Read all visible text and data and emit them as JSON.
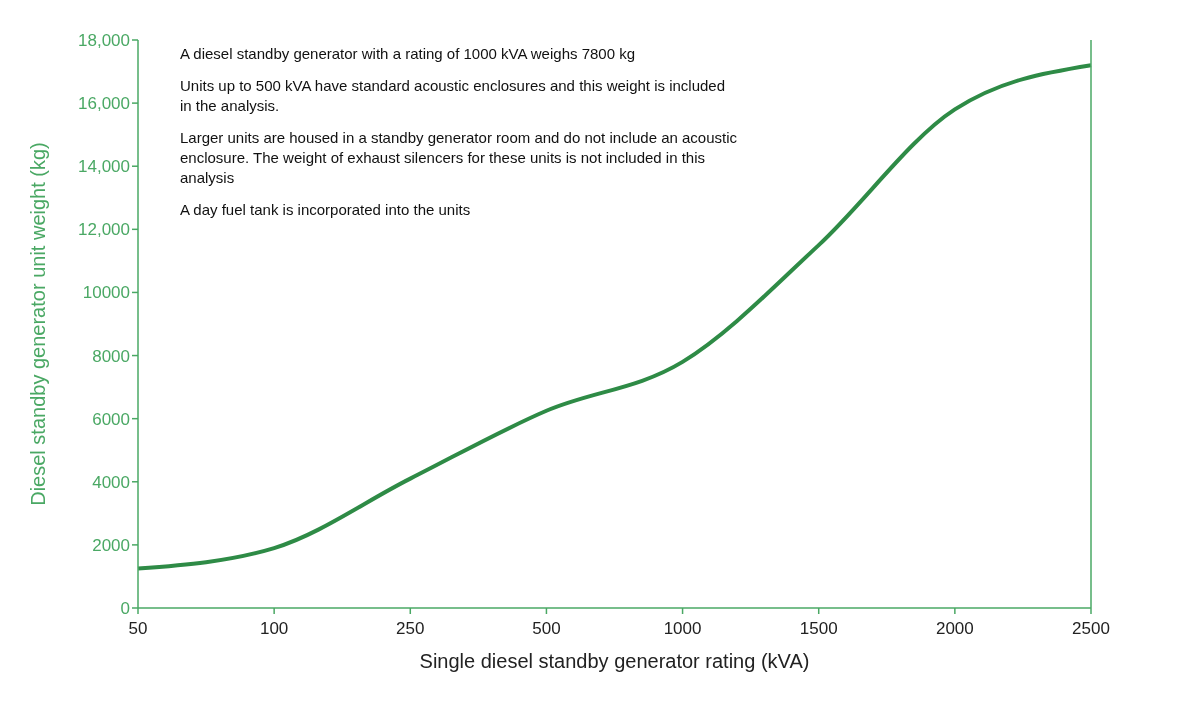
{
  "chart_data": {
    "type": "line",
    "xlabel": "Single diesel standby generator rating (kVA)",
    "ylabel": "Diesel standby generator unit weight (kg)",
    "categories": [
      "50",
      "100",
      "250",
      "500",
      "1000",
      "1500",
      "2000",
      "2500"
    ],
    "series": [
      {
        "color": "#2e8b46",
        "values": [
          1250,
          1900,
          4100,
          6250,
          7800,
          11500,
          15800,
          17200
        ]
      }
    ],
    "ylim": [
      0,
      18000
    ],
    "yticks": [
      0,
      2000,
      4000,
      6000,
      8000,
      10000,
      {
        "value": 12000,
        "label": "12,000"
      },
      {
        "value": 14000,
        "label": "14,000"
      },
      {
        "value": 16000,
        "label": "16,000"
      },
      {
        "value": 18000,
        "label": "18,000"
      }
    ],
    "grid": false,
    "legend": false,
    "marker": "none",
    "line_style": "solid",
    "annotations": [
      "A diesel standby generator with a rating of 1000 kVA weighs 7800 kg",
      "Units up to 500 kVA have standard acoustic enclosures and this weight is included in the analysis.",
      "Larger units are housed in a standby generator room and do not include an acoustic enclosure. The weight of exhaust silencers for these units is not included in this analysis",
      "A day fuel tank is incorporated into the units"
    ]
  }
}
